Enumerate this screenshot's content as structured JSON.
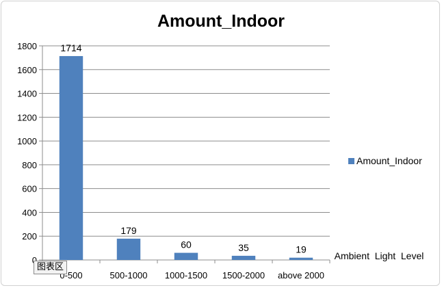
{
  "chart_area_tag": "图表区",
  "chart_data": {
    "type": "bar",
    "title": "Amount_Indoor",
    "xlabel": "Ambient  Light  Level",
    "ylabel": "",
    "categories": [
      "0-500",
      "500-1000",
      "1000-1500",
      "1500-2000",
      "above 2000"
    ],
    "series": [
      {
        "name": "Amount_Indoor",
        "values": [
          1714,
          179,
          60,
          35,
          19
        ],
        "color": "#4F81BD"
      }
    ],
    "ylim": [
      0,
      1800
    ],
    "yticks": [
      0,
      200,
      400,
      600,
      800,
      1000,
      1200,
      1400,
      1600,
      1800
    ],
    "grid": true,
    "legend": "right",
    "data_labels": true
  }
}
